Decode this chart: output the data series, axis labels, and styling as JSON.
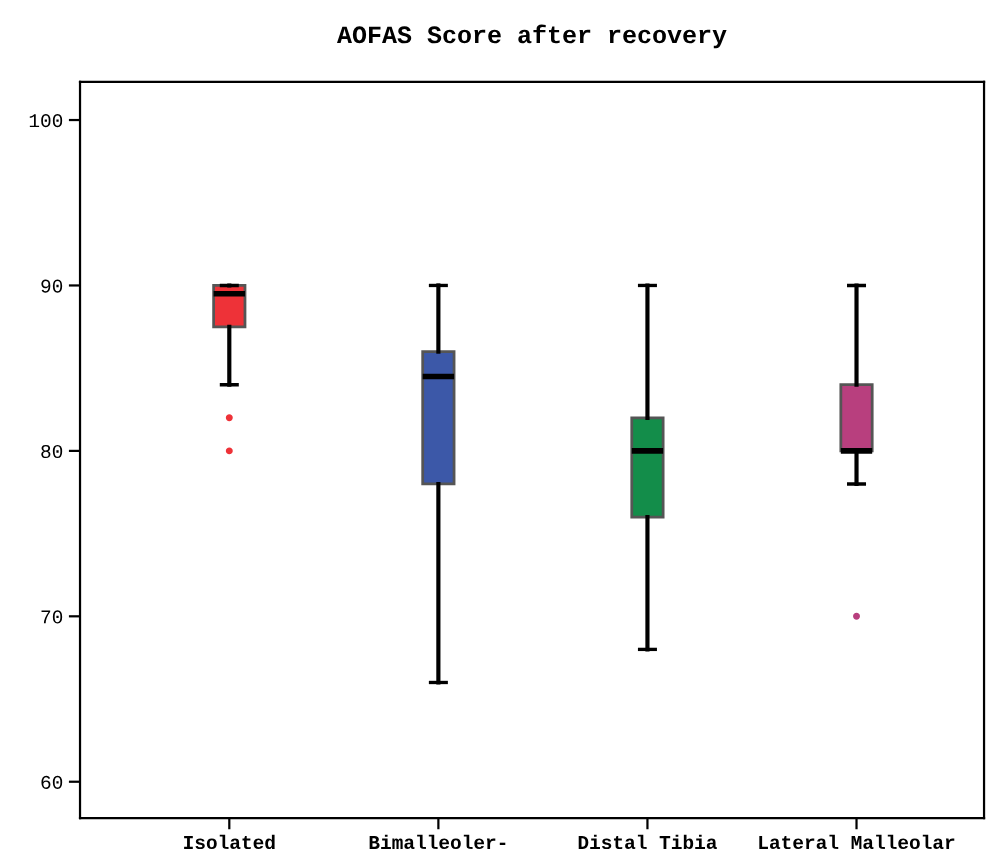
{
  "chart_data": {
    "type": "box",
    "title": "AOFAS Score after recovery",
    "categories": [
      "Isolated",
      "Bimalleoler-",
      "Distal Tibia",
      "Lateral Malleolar"
    ],
    "colors": [
      "#ee3238",
      "#3c58a8",
      "#138d4a",
      "#b83f7e"
    ],
    "boxes": [
      {
        "low": 84,
        "q1": 87.5,
        "median": 89.5,
        "q3": 90,
        "high": 90,
        "outliers": [
          82,
          80
        ]
      },
      {
        "low": 66,
        "q1": 78,
        "median": 84.5,
        "q3": 86,
        "high": 90
      },
      {
        "low": 68,
        "q1": 76,
        "median": 80,
        "q3": 82,
        "high": 90
      },
      {
        "low": 78,
        "q1": 80,
        "median": 80,
        "q3": 84,
        "high": 90,
        "outliers": [
          70
        ]
      }
    ],
    "ylim": [
      57.8,
      102.3
    ],
    "yticks": [
      60,
      70,
      80,
      90,
      100
    ],
    "grid": false,
    "legend": false
  }
}
